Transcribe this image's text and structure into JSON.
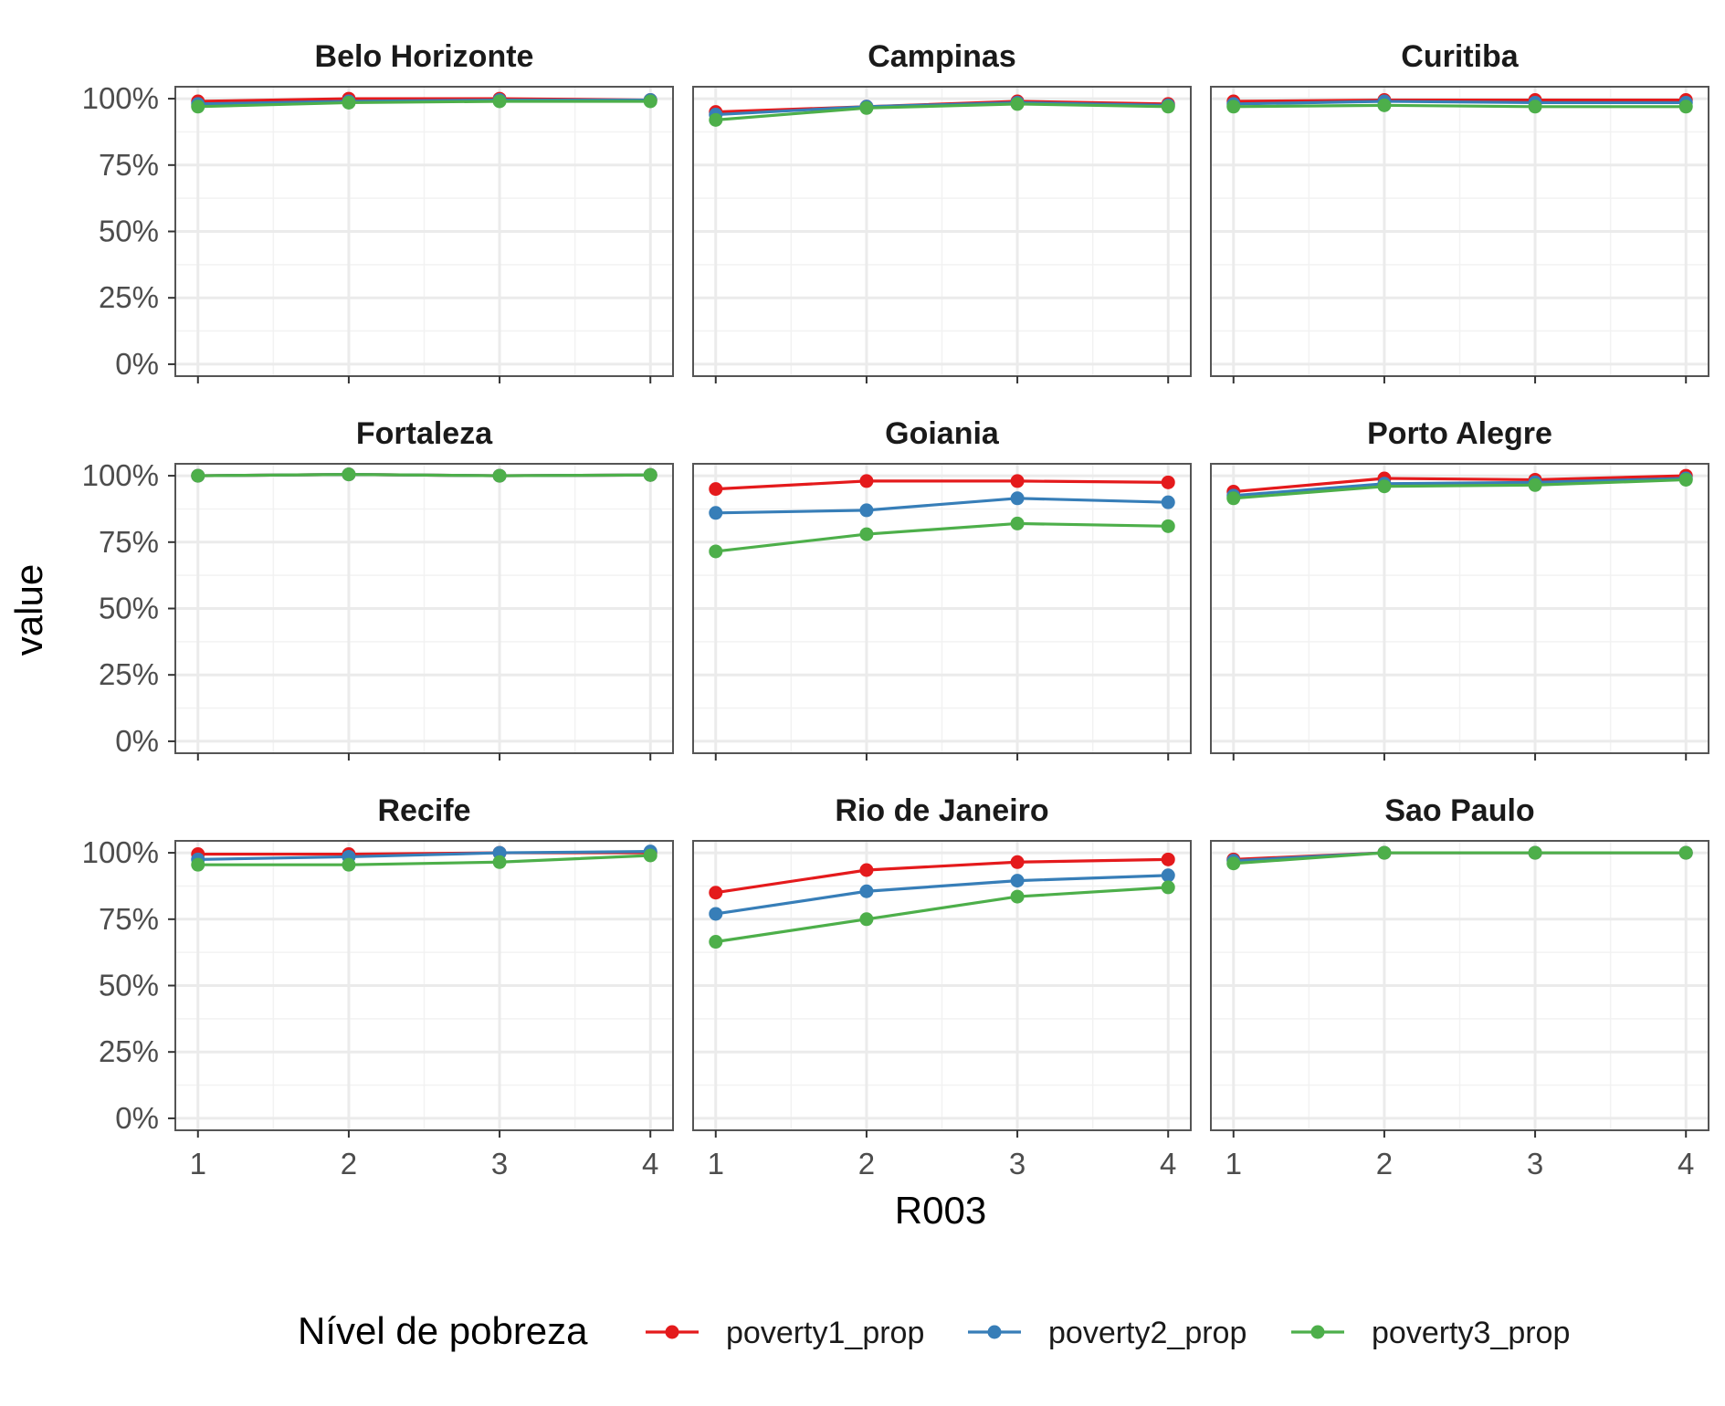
{
  "chart_data": {
    "type": "line",
    "layout": "facet-grid-3x3",
    "xlabel": "R003",
    "ylabel": "value",
    "x": [
      1,
      2,
      3,
      4
    ],
    "x_ticks": [
      "1",
      "2",
      "3",
      "4"
    ],
    "ylim": [
      0,
      1
    ],
    "y_ticks": [
      "0%",
      "25%",
      "50%",
      "75%",
      "100%"
    ],
    "grid": true,
    "legend": {
      "title": "Nível de pobreza",
      "position": "bottom",
      "entries": [
        "poverty1_prop",
        "poverty2_prop",
        "poverty3_prop"
      ]
    },
    "colors": {
      "poverty1_prop": "#e41a1c",
      "poverty2_prop": "#377eb8",
      "poverty3_prop": "#4daf4a",
      "panel_border": "#555555",
      "grid": "#ebebeb"
    },
    "panels": [
      {
        "title": "Belo Horizonte",
        "series": [
          {
            "name": "poverty1_prop",
            "values": [
              0.99,
              1.0,
              1.0,
              0.995
            ]
          },
          {
            "name": "poverty2_prop",
            "values": [
              0.98,
              0.99,
              0.995,
              0.995
            ]
          },
          {
            "name": "poverty3_prop",
            "values": [
              0.97,
              0.985,
              0.99,
              0.99
            ]
          }
        ]
      },
      {
        "title": "Campinas",
        "series": [
          {
            "name": "poverty1_prop",
            "values": [
              0.95,
              0.97,
              0.99,
              0.98
            ]
          },
          {
            "name": "poverty2_prop",
            "values": [
              0.94,
              0.97,
              0.985,
              0.975
            ]
          },
          {
            "name": "poverty3_prop",
            "values": [
              0.92,
              0.965,
              0.98,
              0.97
            ]
          }
        ]
      },
      {
        "title": "Curitiba",
        "series": [
          {
            "name": "poverty1_prop",
            "values": [
              0.99,
              0.995,
              0.995,
              0.995
            ]
          },
          {
            "name": "poverty2_prop",
            "values": [
              0.98,
              0.99,
              0.985,
              0.985
            ]
          },
          {
            "name": "poverty3_prop",
            "values": [
              0.97,
              0.975,
              0.97,
              0.97
            ]
          }
        ]
      },
      {
        "title": "Fortaleza",
        "series": [
          {
            "name": "poverty1_prop",
            "values": [
              1.0,
              1.005,
              1.0,
              1.003
            ]
          },
          {
            "name": "poverty2_prop",
            "values": [
              1.0,
              1.005,
              1.0,
              1.003
            ]
          },
          {
            "name": "poverty3_prop",
            "values": [
              1.0,
              1.005,
              1.0,
              1.003
            ]
          }
        ]
      },
      {
        "title": "Goiania",
        "series": [
          {
            "name": "poverty1_prop",
            "values": [
              0.95,
              0.98,
              0.98,
              0.975
            ]
          },
          {
            "name": "poverty2_prop",
            "values": [
              0.86,
              0.87,
              0.915,
              0.9
            ]
          },
          {
            "name": "poverty3_prop",
            "values": [
              0.715,
              0.78,
              0.82,
              0.81
            ]
          }
        ]
      },
      {
        "title": "Porto Alegre",
        "series": [
          {
            "name": "poverty1_prop",
            "values": [
              0.94,
              0.99,
              0.985,
              1.0
            ]
          },
          {
            "name": "poverty2_prop",
            "values": [
              0.925,
              0.97,
              0.975,
              0.99
            ]
          },
          {
            "name": "poverty3_prop",
            "values": [
              0.915,
              0.96,
              0.965,
              0.985
            ]
          }
        ]
      },
      {
        "title": "Recife",
        "series": [
          {
            "name": "poverty1_prop",
            "values": [
              0.995,
              0.995,
              1.0,
              1.0
            ]
          },
          {
            "name": "poverty2_prop",
            "values": [
              0.975,
              0.985,
              1.0,
              1.005
            ]
          },
          {
            "name": "poverty3_prop",
            "values": [
              0.955,
              0.955,
              0.965,
              0.99
            ]
          }
        ]
      },
      {
        "title": "Rio de Janeiro",
        "series": [
          {
            "name": "poverty1_prop",
            "values": [
              0.85,
              0.935,
              0.965,
              0.975
            ]
          },
          {
            "name": "poverty2_prop",
            "values": [
              0.77,
              0.855,
              0.895,
              0.915
            ]
          },
          {
            "name": "poverty3_prop",
            "values": [
              0.665,
              0.75,
              0.835,
              0.87
            ]
          }
        ]
      },
      {
        "title": "Sao Paulo",
        "series": [
          {
            "name": "poverty1_prop",
            "values": [
              0.975,
              1.0,
              1.0,
              1.0
            ]
          },
          {
            "name": "poverty2_prop",
            "values": [
              0.97,
              1.0,
              1.0,
              1.0
            ]
          },
          {
            "name": "poverty3_prop",
            "values": [
              0.96,
              1.0,
              1.0,
              1.0
            ]
          }
        ]
      }
    ]
  }
}
